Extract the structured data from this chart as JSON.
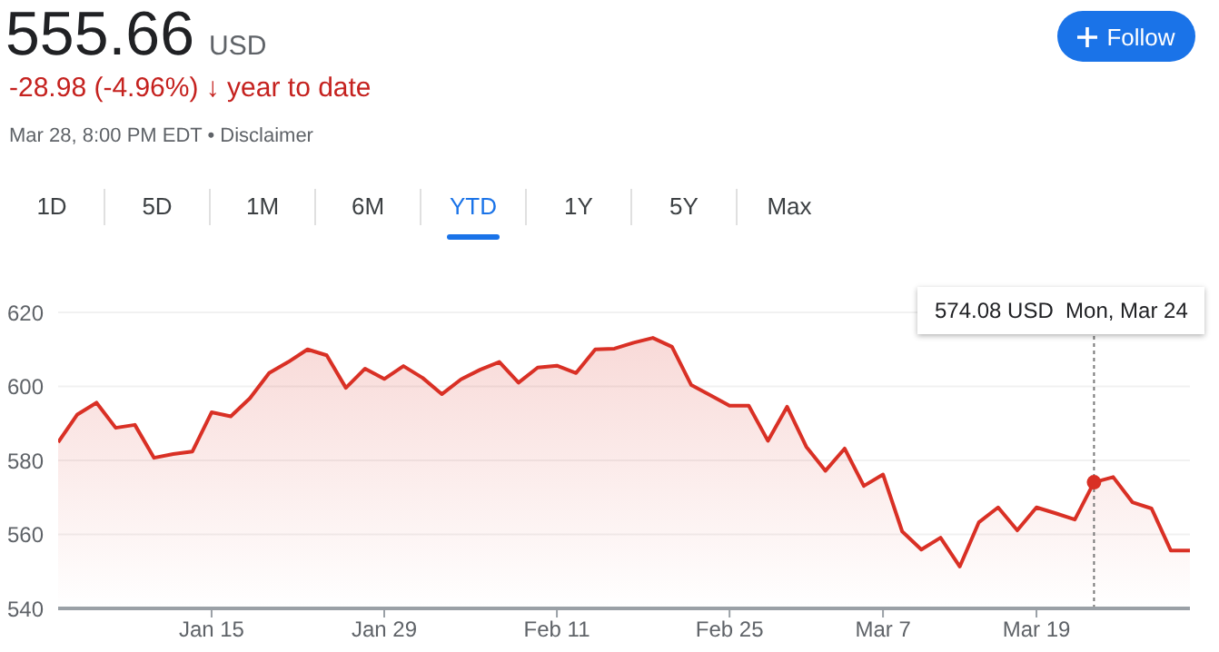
{
  "chart_data": {
    "type": "area",
    "title": "555.66",
    "subtitle": "USD",
    "categories": [
      null,
      null,
      null,
      null,
      null,
      null,
      null,
      null,
      "Jan 15",
      null,
      null,
      null,
      null,
      null,
      null,
      null,
      null,
      "Jan 29",
      null,
      null,
      null,
      null,
      null,
      null,
      null,
      null,
      "Feb 11",
      null,
      null,
      null,
      null,
      null,
      null,
      null,
      null,
      "Feb 25",
      null,
      null,
      null,
      null,
      null,
      null,
      null,
      "Mar 7",
      null,
      null,
      null,
      null,
      null,
      null,
      null,
      "Mar 19",
      null,
      null,
      null,
      null,
      null,
      null,
      null,
      null
    ],
    "series": [
      {
        "color": "#d93025",
        "values": [
          584.9,
          592.4,
          595.6,
          588.8,
          589.6,
          580.7,
          581.7,
          582.4,
          593.0,
          591.9,
          596.8,
          603.6,
          606.6,
          610.0,
          608.4,
          599.6,
          604.8,
          602.0,
          605.5,
          602.3,
          597.9,
          601.9,
          604.5,
          606.6,
          601.0,
          605.1,
          605.6,
          603.6,
          610.0,
          610.2,
          611.8,
          613.1,
          610.7,
          600.4,
          597.6,
          594.8,
          594.8,
          585.3,
          594.5,
          583.7,
          577.2,
          583.2,
          573.1,
          576.2,
          560.8,
          555.9,
          559.1,
          551.3,
          563.3,
          567.3,
          561.1,
          567.3,
          565.7,
          564.0,
          574.08,
          575.5,
          568.7,
          567.0,
          555.66,
          555.66
        ]
      }
    ],
    "ylim": [
      540,
      620
    ],
    "yticks": [
      540,
      560,
      580,
      600,
      620
    ],
    "grid": "y",
    "annotations": [
      "-28.98 (-4.96%) ↓ year to date",
      "Mar 28, 8:00 PM EDT • Disclaimer",
      "1D",
      "5D",
      "1M",
      "6M",
      "YTD",
      "1Y",
      "5Y",
      "Max",
      "Follow",
      "574.08 USD  Mon, Mar 24"
    ]
  }
}
